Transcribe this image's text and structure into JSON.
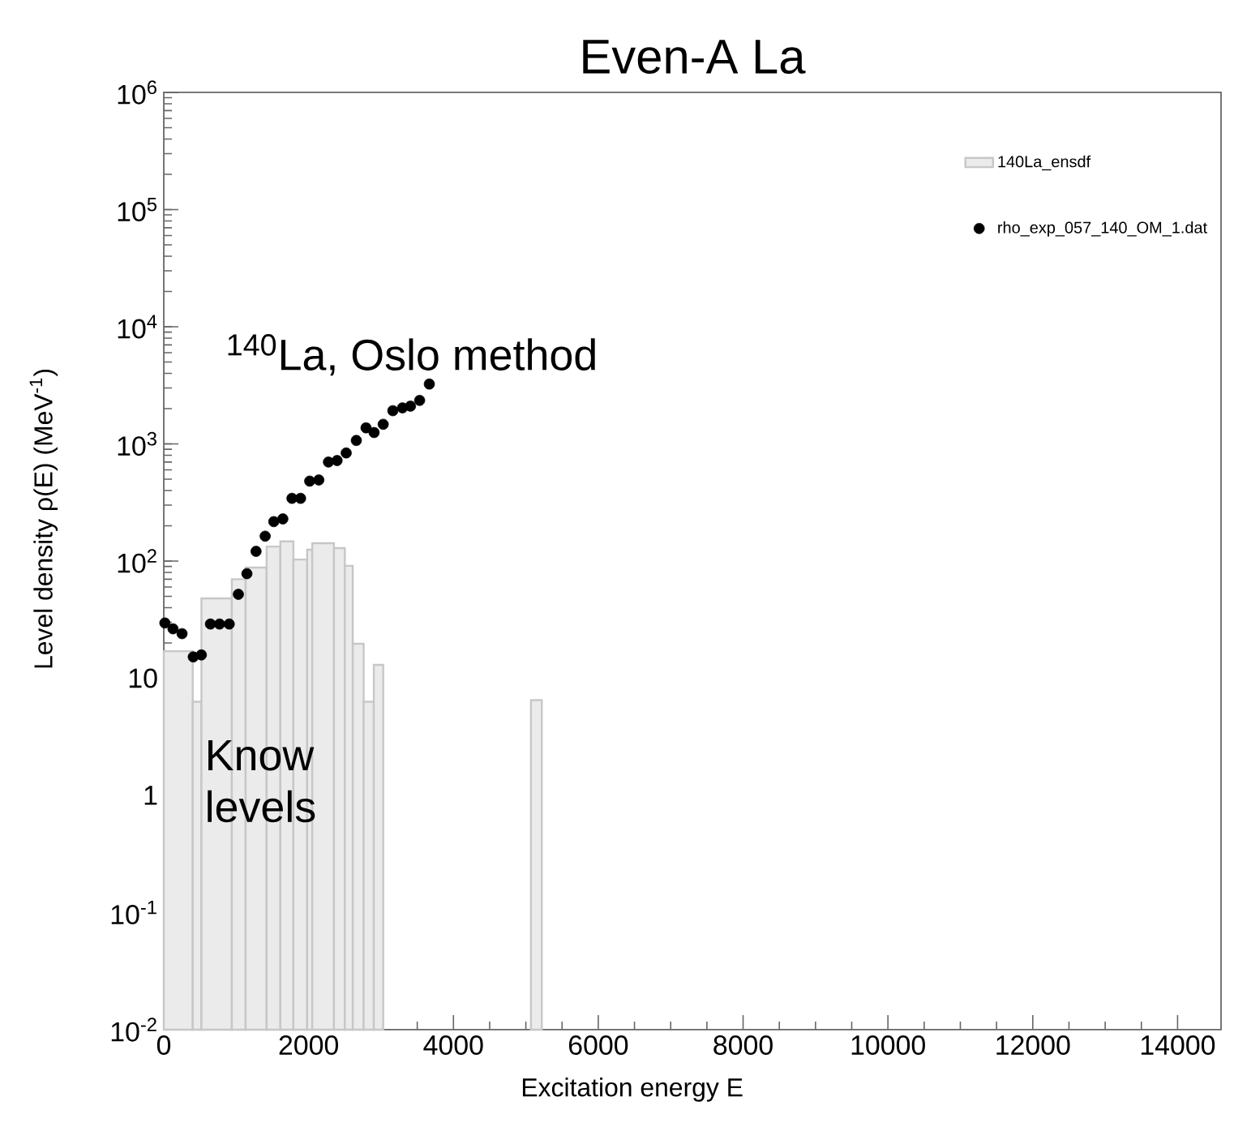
{
  "chart_data": {
    "type": "histogram",
    "title": "Even-A La",
    "xlabel": "Excitation energy E",
    "ylabel": "Level density ρ(E) (MeV$^{-1}$)",
    "annotations": [
      "$^{140}$La, Oslo method",
      "Know levels"
    ],
    "log": "y",
    "legend": "top right",
    "xlim": [
      0,
      14600
    ],
    "ylim": [
      0.01,
      1000000
    ],
    "xticks": [
      0,
      2000,
      4000,
      6000,
      8000,
      10000,
      12000,
      14000
    ],
    "yticks": [
      {
        "value": 0.01,
        "label": "10$^{-2}$"
      },
      {
        "value": 0.1,
        "label": "10$^{-1}$"
      },
      {
        "value": 1,
        "label": "1"
      },
      {
        "value": 10,
        "label": "10"
      },
      {
        "value": 100,
        "label": "10$^{2}$"
      },
      {
        "value": 1000,
        "label": "10$^{3}$"
      },
      {
        "value": 10000,
        "label": "10$^{4}$"
      },
      {
        "value": 100000,
        "label": "10$^{5}$"
      },
      {
        "value": 1000000,
        "label": "10$^{6}$"
      }
    ],
    "series": [
      {
        "name": "140La_ensdf",
        "color": "#ebebeb",
        "bins": [
          0,
          400,
          520,
          940,
          1130,
          1420,
          1610,
          1790,
          1980,
          2050,
          2350,
          2500,
          2610,
          2760,
          2900,
          3030,
          5070,
          5220
        ],
        "values": [
          17,
          6.3,
          48,
          70,
          88,
          133,
          147,
          103,
          125,
          142,
          129,
          91,
          19.7,
          6.3,
          13,
          null,
          6.5
        ]
      },
      {
        "type": "scatter",
        "marker": "circle",
        "name": "rho_exp_057_140_OM_1.dat",
        "color": "#000000",
        "x": [
          15,
          127,
          252,
          407,
          519,
          644,
          770,
          904,
          1030,
          1148,
          1274,
          1400,
          1519,
          1644,
          1770,
          1889,
          2015,
          2141,
          2274,
          2393,
          2519,
          2659,
          2793,
          2904,
          3030,
          3163,
          3296,
          3407,
          3533,
          3667
        ],
        "values": [
          29.6,
          26.4,
          24,
          15.2,
          15.8,
          29,
          29,
          29,
          52,
          78,
          121,
          163,
          217,
          229,
          343,
          343,
          481,
          492,
          700,
          721,
          837,
          1070,
          1370,
          1250,
          1470,
          1920,
          2030,
          2100,
          2350,
          3240
        ]
      }
    ]
  }
}
